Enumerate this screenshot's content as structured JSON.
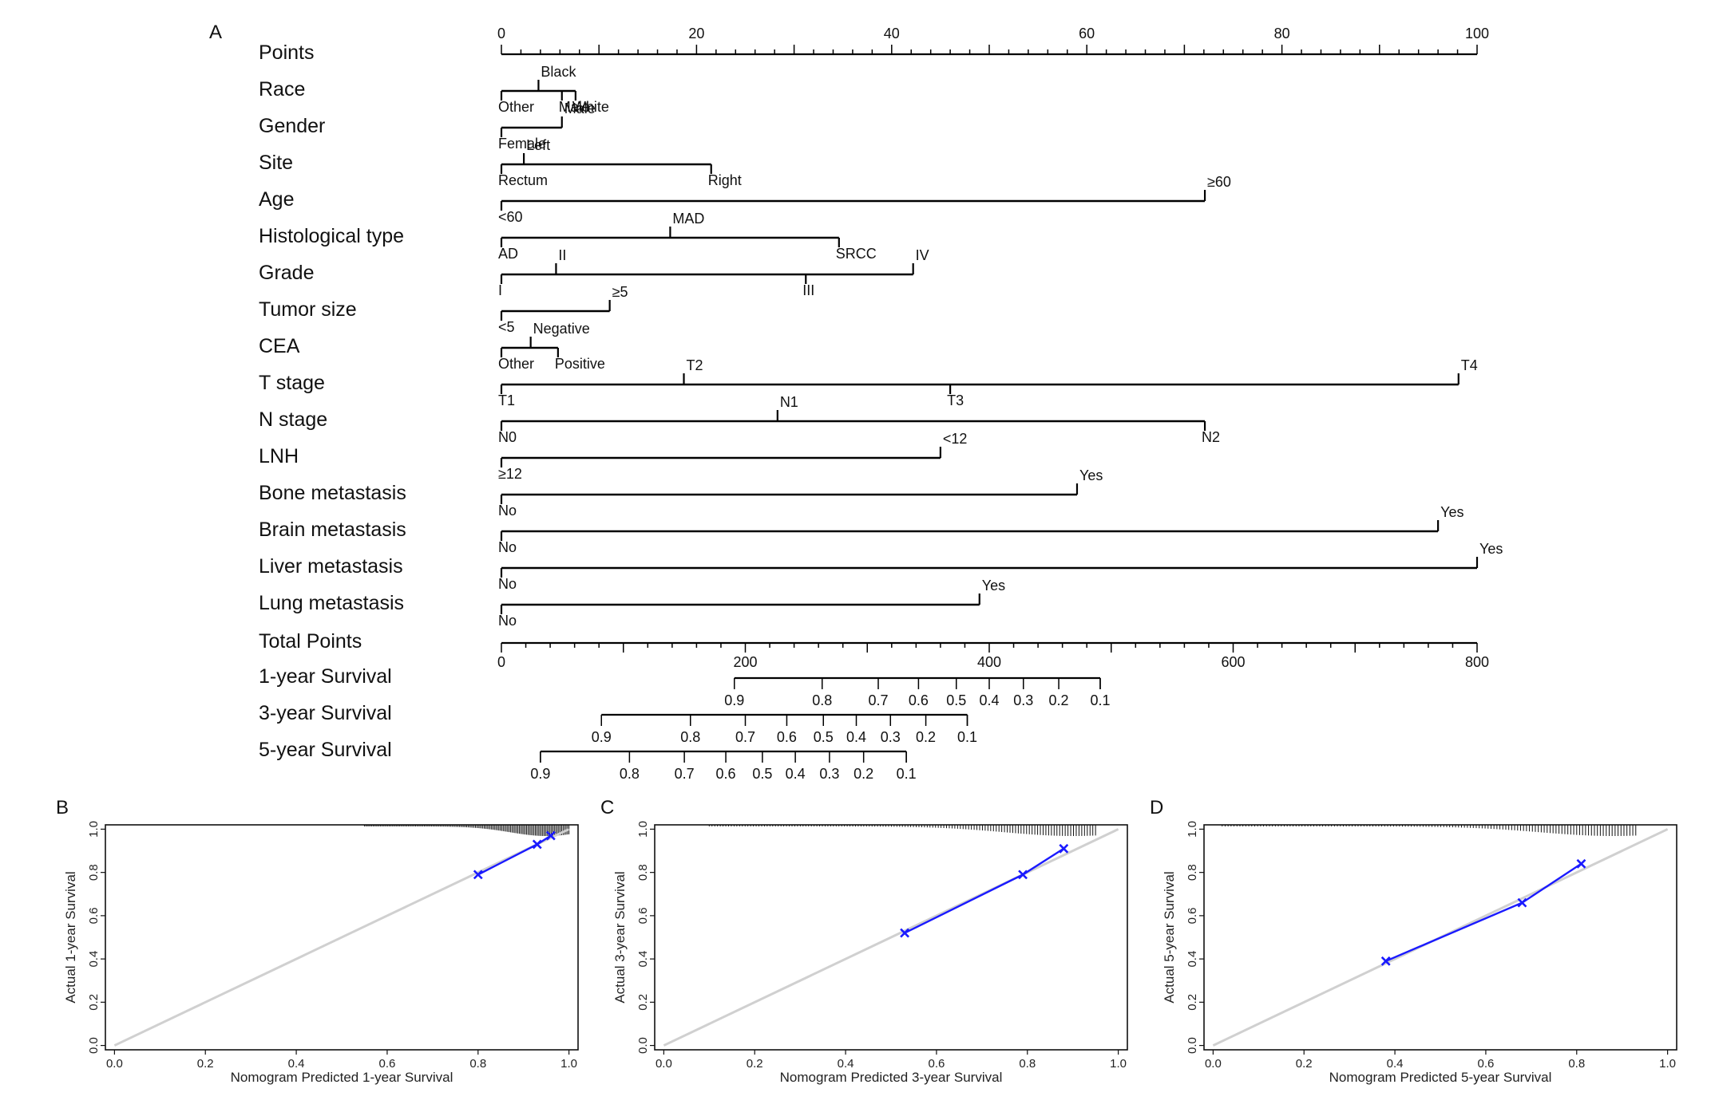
{
  "panel_letters": {
    "a": "A",
    "b": "B",
    "c": "C",
    "d": "D"
  },
  "chart_data": [
    {
      "type": "nomogram",
      "rows": [
        {
          "label": "Points",
          "kind": "scale",
          "range": [
            0,
            100
          ],
          "labels": [
            0,
            20,
            40,
            60,
            80,
            100
          ]
        },
        {
          "label": "Race",
          "kind": "variable",
          "levels": [
            {
              "name": "Other",
              "points": 0,
              "pos": "below"
            },
            {
              "name": "Black",
              "points": 3.8,
              "pos": "above"
            },
            {
              "name": "Male",
              "points": 6.2,
              "pos": "below"
            },
            {
              "name": "White",
              "points": 7.6,
              "pos": "below"
            }
          ]
        },
        {
          "label": "Gender",
          "kind": "variable",
          "levels": [
            {
              "name": "Male",
              "points": 6.2,
              "pos": "above"
            },
            {
              "name": "Female",
              "points": 0,
              "pos": "below"
            }
          ]
        },
        {
          "label": "Site",
          "kind": "variable",
          "levels": [
            {
              "name": "Rectum",
              "points": 0,
              "pos": "below"
            },
            {
              "name": "Left",
              "points": 2.3,
              "pos": "above"
            },
            {
              "name": "Right",
              "points": 21.5,
              "pos": "below"
            }
          ]
        },
        {
          "label": "Age",
          "kind": "variable",
          "levels": [
            {
              "name": "<60",
              "points": 0,
              "pos": "below"
            },
            {
              "name": "≥60",
              "points": 72.1,
              "pos": "above"
            }
          ]
        },
        {
          "label": "Histological type",
          "kind": "variable",
          "levels": [
            {
              "name": "AD",
              "points": 0,
              "pos": "below"
            },
            {
              "name": "MAD",
              "points": 17.3,
              "pos": "above"
            },
            {
              "name": "SRCC",
              "points": 34.6,
              "pos": "below"
            }
          ]
        },
        {
          "label": "Grade",
          "kind": "variable",
          "levels": [
            {
              "name": "I",
              "points": 0,
              "pos": "below"
            },
            {
              "name": "II",
              "points": 5.6,
              "pos": "above"
            },
            {
              "name": "III",
              "points": 31.2,
              "pos": "below"
            },
            {
              "name": "IV",
              "points": 42.2,
              "pos": "above"
            }
          ]
        },
        {
          "label": "Tumor size",
          "kind": "variable",
          "levels": [
            {
              "name": "<5",
              "points": 0,
              "pos": "below"
            },
            {
              "name": "≥5",
              "points": 11.1,
              "pos": "above"
            }
          ]
        },
        {
          "label": "CEA",
          "kind": "variable",
          "levels": [
            {
              "name": "Other",
              "points": 0,
              "pos": "below"
            },
            {
              "name": "Negative",
              "points": 3.0,
              "pos": "above"
            },
            {
              "name": "Positive",
              "points": 5.8,
              "pos": "below"
            }
          ]
        },
        {
          "label": "T stage",
          "kind": "variable",
          "levels": [
            {
              "name": "T1",
              "points": 0,
              "pos": "below"
            },
            {
              "name": "T2",
              "points": 18.7,
              "pos": "above"
            },
            {
              "name": "T3",
              "points": 46.0,
              "pos": "below"
            },
            {
              "name": "T4",
              "points": 98.1,
              "pos": "above"
            }
          ]
        },
        {
          "label": "N stage",
          "kind": "variable",
          "levels": [
            {
              "name": "N0",
              "points": 0,
              "pos": "below"
            },
            {
              "name": "N1",
              "points": 28.3,
              "pos": "above"
            },
            {
              "name": "N2",
              "points": 72.1,
              "pos": "below"
            }
          ]
        },
        {
          "label": "LNH",
          "kind": "variable",
          "levels": [
            {
              "name": "≥12",
              "points": 0,
              "pos": "below"
            },
            {
              "name": "<12",
              "points": 45.0,
              "pos": "above"
            }
          ]
        },
        {
          "label": "Bone metastasis",
          "kind": "variable",
          "levels": [
            {
              "name": "No",
              "points": 0,
              "pos": "below"
            },
            {
              "name": "Yes",
              "points": 59.0,
              "pos": "above"
            }
          ]
        },
        {
          "label": "Brain metastasis",
          "kind": "variable",
          "levels": [
            {
              "name": "No",
              "points": 0,
              "pos": "below"
            },
            {
              "name": "Yes",
              "points": 96.0,
              "pos": "above"
            }
          ]
        },
        {
          "label": "Liver metastasis",
          "kind": "variable",
          "levels": [
            {
              "name": "No",
              "points": 0,
              "pos": "below"
            },
            {
              "name": "Yes",
              "points": 100,
              "pos": "above"
            }
          ]
        },
        {
          "label": "Lung metastasis",
          "kind": "variable",
          "levels": [
            {
              "name": "No",
              "points": 0,
              "pos": "below"
            },
            {
              "name": "Yes",
              "points": 49.0,
              "pos": "above"
            }
          ]
        },
        {
          "label": "Total Points",
          "kind": "total",
          "range": [
            0,
            800
          ],
          "labels": [
            0,
            200,
            400,
            600,
            800
          ]
        },
        {
          "label": "1-year Survival",
          "kind": "probability",
          "line_range_total_points": [
            191,
            491
          ],
          "values": [
            {
              "p": "0.9",
              "total": 191
            },
            {
              "p": "0.8",
              "total": 263
            },
            {
              "p": "0.7",
              "total": 309
            },
            {
              "p": "0.6",
              "total": 342
            },
            {
              "p": "0.5",
              "total": 373
            },
            {
              "p": "0.4",
              "total": 400
            },
            {
              "p": "0.3",
              "total": 428
            },
            {
              "p": "0.2",
              "total": 457
            },
            {
              "p": "0.1",
              "total": 491
            }
          ]
        },
        {
          "label": "3-year Survival",
          "kind": "probability",
          "line_range_total_points": [
            82,
            382
          ],
          "values": [
            {
              "p": "0.9",
              "total": 82
            },
            {
              "p": "0.8",
              "total": 155
            },
            {
              "p": "0.7",
              "total": 200
            },
            {
              "p": "0.6",
              "total": 234
            },
            {
              "p": "0.5",
              "total": 264
            },
            {
              "p": "0.4",
              "total": 291
            },
            {
              "p": "0.3",
              "total": 319
            },
            {
              "p": "0.2",
              "total": 348
            },
            {
              "p": "0.1",
              "total": 382
            }
          ]
        },
        {
          "label": "5-year Survival",
          "kind": "probability",
          "line_range_total_points": [
            32,
            332
          ],
          "values": [
            {
              "p": "0.9",
              "total": 32
            },
            {
              "p": "0.8",
              "total": 105
            },
            {
              "p": "0.7",
              "total": 150
            },
            {
              "p": "0.6",
              "total": 184
            },
            {
              "p": "0.5",
              "total": 214
            },
            {
              "p": "0.4",
              "total": 241
            },
            {
              "p": "0.3",
              "total": 269
            },
            {
              "p": "0.2",
              "total": 297
            },
            {
              "p": "0.1",
              "total": 332
            }
          ]
        }
      ]
    },
    {
      "type": "scatter",
      "panel": "B",
      "xlabel": "Nomogram Predicted 1-year Survival",
      "ylabel": "Actual 1-year Survival",
      "xlim": [
        0,
        1
      ],
      "ylim": [
        0,
        1
      ],
      "xticks": [
        "0.0",
        "0.2",
        "0.4",
        "0.6",
        "0.8",
        "1.0"
      ],
      "yticks": [
        "0.0",
        "0.2",
        "0.4",
        "0.6",
        "0.8",
        "1.0"
      ],
      "reference_line": [
        [
          0,
          0
        ],
        [
          1,
          1
        ]
      ],
      "series": [
        {
          "x": [
            0.8,
            0.93,
            0.96
          ],
          "y": [
            0.79,
            0.93,
            0.97
          ]
        }
      ],
      "rug_range": [
        0.55,
        1.0
      ],
      "colors": {
        "points": "#1a1aff",
        "line": "#1a1aff",
        "reference": "#d0d0d0"
      }
    },
    {
      "type": "scatter",
      "panel": "C",
      "xlabel": "Nomogram Predicted 3-year Survival",
      "ylabel": "Actual 3-year Survival",
      "xlim": [
        0,
        1
      ],
      "ylim": [
        0,
        1
      ],
      "xticks": [
        "0.0",
        "0.2",
        "0.4",
        "0.6",
        "0.8",
        "1.0"
      ],
      "yticks": [
        "0.0",
        "0.2",
        "0.4",
        "0.6",
        "0.8",
        "1.0"
      ],
      "reference_line": [
        [
          0,
          0
        ],
        [
          1,
          1
        ]
      ],
      "series": [
        {
          "x": [
            0.53,
            0.79,
            0.88
          ],
          "y": [
            0.52,
            0.79,
            0.91
          ]
        }
      ],
      "rug_range": [
        0.1,
        0.95
      ],
      "colors": {
        "points": "#1a1aff",
        "line": "#1a1aff",
        "reference": "#d0d0d0"
      }
    },
    {
      "type": "scatter",
      "panel": "D",
      "xlabel": "Nomogram Predicted 5-year Survival",
      "ylabel": "Actual 5-year Survival",
      "xlim": [
        0,
        1
      ],
      "ylim": [
        0,
        1
      ],
      "xticks": [
        "0.0",
        "0.2",
        "0.4",
        "0.6",
        "0.8",
        "1.0"
      ],
      "yticks": [
        "0.0",
        "0.2",
        "0.4",
        "0.6",
        "0.8",
        "1.0"
      ],
      "reference_line": [
        [
          0,
          0
        ],
        [
          1,
          1
        ]
      ],
      "series": [
        {
          "x": [
            0.38,
            0.68,
            0.81
          ],
          "y": [
            0.39,
            0.66,
            0.84
          ]
        }
      ],
      "rug_range": [
        0.02,
        0.93
      ],
      "colors": {
        "points": "#1a1aff",
        "line": "#1a1aff",
        "reference": "#d0d0d0"
      }
    }
  ]
}
